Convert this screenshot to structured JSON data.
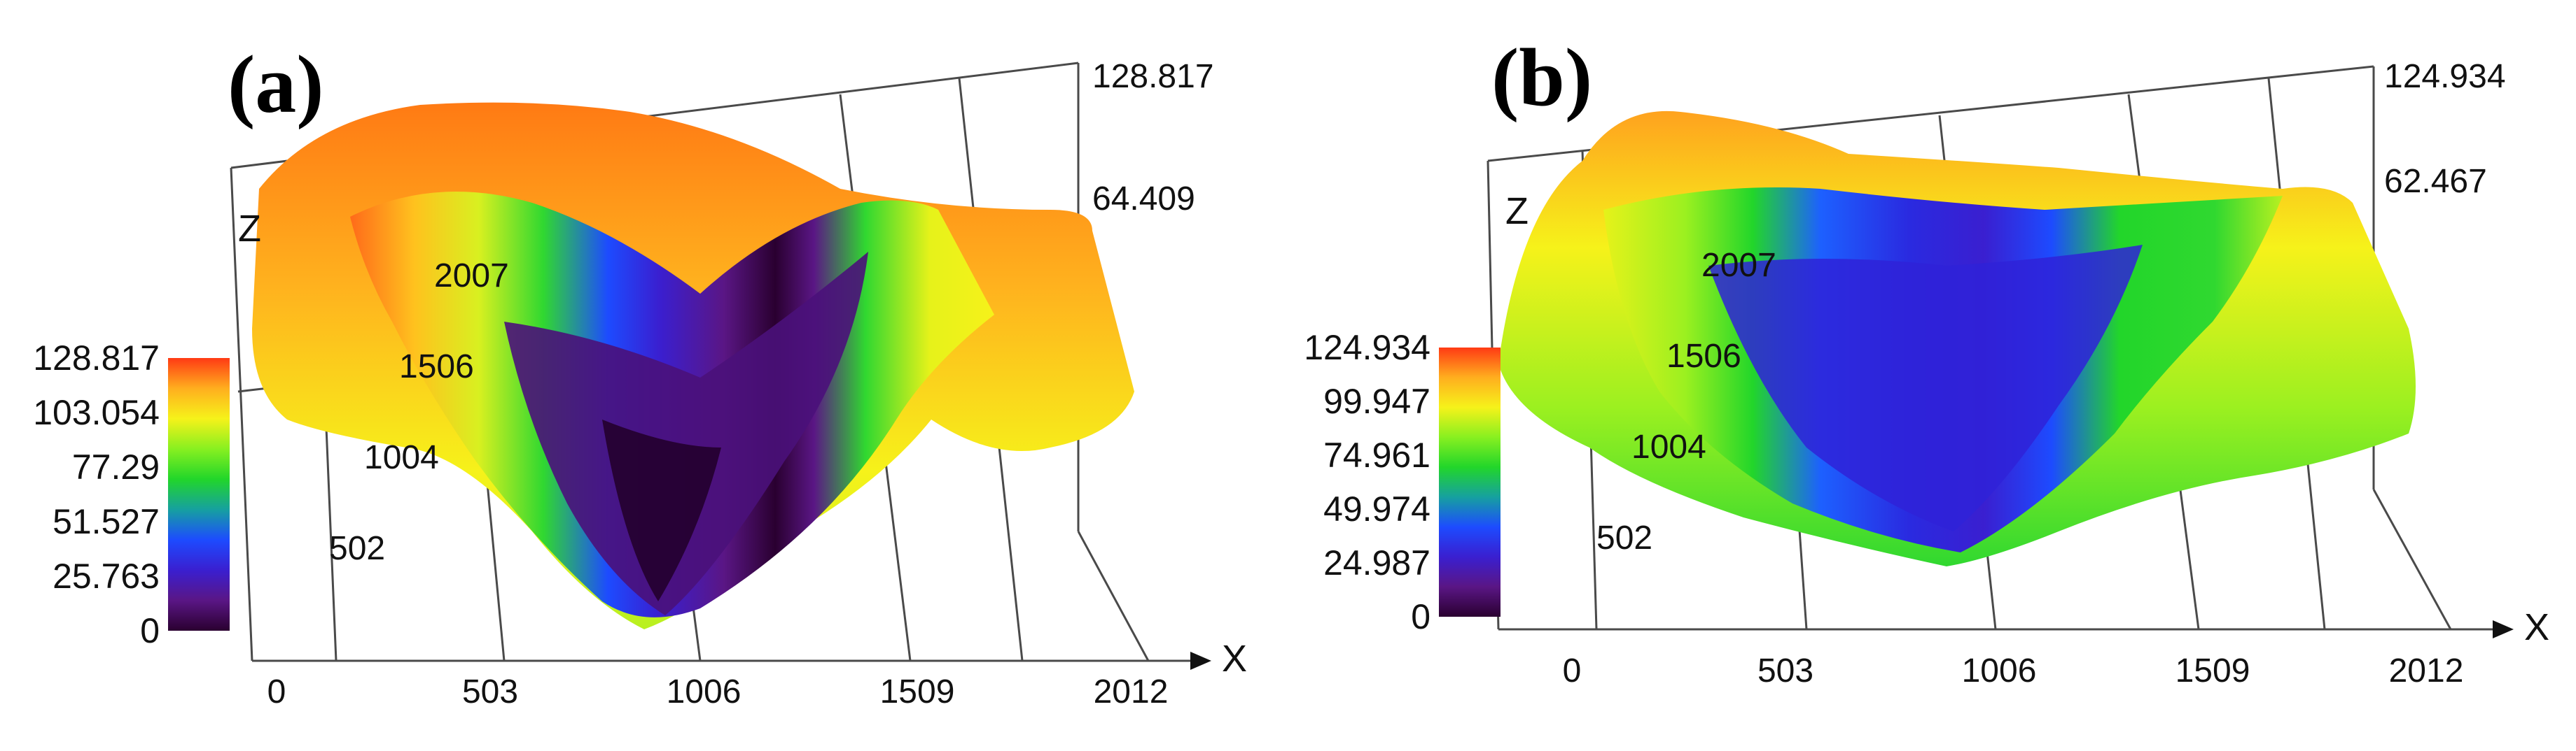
{
  "chart_data": [
    {
      "type": "heatmap",
      "subtype": "3d-surface",
      "panel_label": "(a)",
      "x_ticks": [
        0,
        503,
        1006,
        1509,
        2012
      ],
      "y_ticks": [
        502,
        1004,
        1506,
        2007
      ],
      "z_ticks": [
        64.409,
        128.817
      ],
      "xlabel": "X",
      "zlabel": "Z",
      "colorbar_ticks": [
        0,
        25.763,
        51.527,
        77.29,
        103.054,
        128.817
      ],
      "colorbar_tick_labels": [
        "0",
        "25.763",
        "51.527",
        "77.29",
        "103.054",
        "128.817"
      ],
      "z_range": [
        0,
        128.817
      ],
      "colorscale": [
        "#2a0030",
        "#5a1685",
        "#3a1fd0",
        "#1d4bff",
        "#16a0a0",
        "#22d62a",
        "#88f020",
        "#f6f21a",
        "#ffae1e",
        "#ff3a14"
      ]
    },
    {
      "type": "heatmap",
      "subtype": "3d-surface",
      "panel_label": "(b)",
      "x_ticks": [
        0,
        503,
        1006,
        1509,
        2012
      ],
      "y_ticks": [
        502,
        1004,
        1506,
        2007
      ],
      "z_ticks": [
        62.467,
        124.934
      ],
      "xlabel": "X",
      "zlabel": "Z",
      "colorbar_ticks": [
        0,
        24.987,
        49.974,
        74.961,
        99.947,
        124.934
      ],
      "colorbar_tick_labels": [
        "0",
        "24.987",
        "49.974",
        "74.961",
        "99.947",
        "124.934"
      ],
      "z_range": [
        0,
        124.934
      ],
      "colorscale": [
        "#2a0030",
        "#5a1685",
        "#3a1fd0",
        "#1d4bff",
        "#16a0a0",
        "#22d62a",
        "#88f020",
        "#f6f21a",
        "#ffae1e",
        "#ff3a14"
      ]
    }
  ]
}
